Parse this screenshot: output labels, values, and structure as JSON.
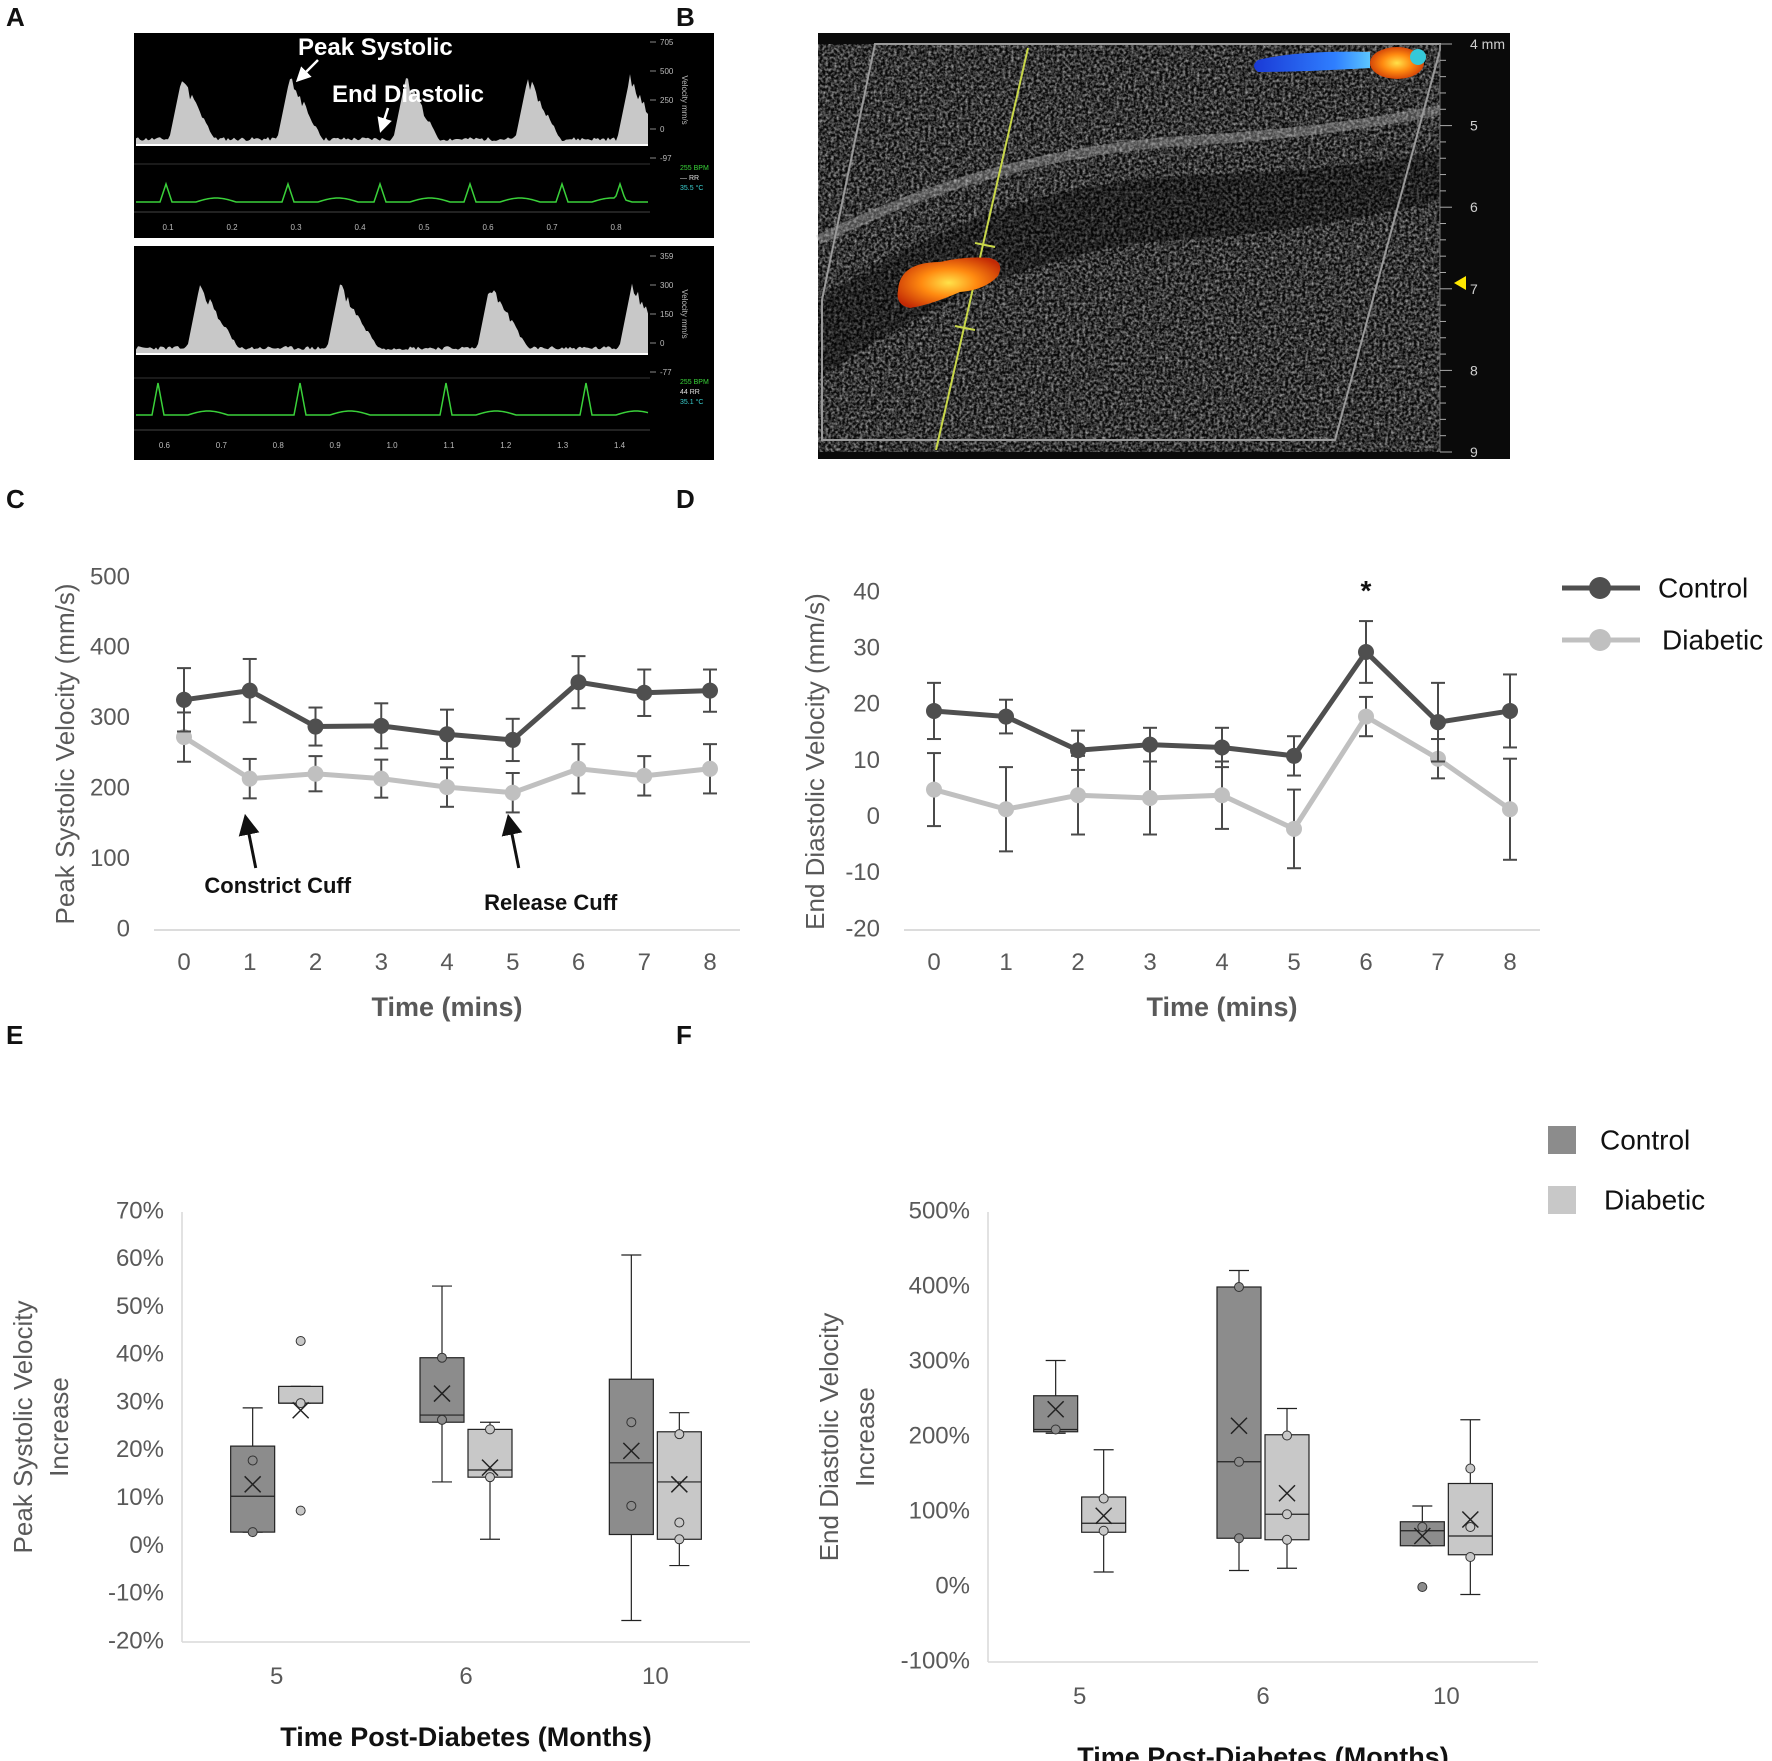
{
  "panel_labels": [
    "A",
    "B",
    "C",
    "D",
    "E",
    "F"
  ],
  "colors": {
    "control_line": "#4f4f4f",
    "diabetic_line": "#c0c0c0",
    "control_box": "#8c8c8c",
    "diabetic_box": "#c8c8c8",
    "axis_text": "#595959",
    "waveform_green": "#3ad13a",
    "ultrasound_bg": "#0a0a0a"
  },
  "panel_a": {
    "annotation_peak": "Peak Systolic",
    "annotation_end": "End Diastolic",
    "top_time_ticks": [
      "0.1",
      "0.2",
      "0.3",
      "0.4",
      "0.5",
      "0.6",
      "0.7",
      "0.8"
    ],
    "bottom_time_ticks": [
      "0.6",
      "0.7",
      "0.8",
      "0.9",
      "1.0",
      "1.1",
      "1.2",
      "1.3",
      "1.4"
    ],
    "top_scale_ticks": [
      "705",
      "500",
      "250",
      "0",
      "-97"
    ],
    "bottom_scale_ticks": [
      "359",
      "300",
      "150",
      "0",
      "-77"
    ],
    "top_side_readout": [
      "255 BPM",
      "— RR",
      "35.5 °C"
    ],
    "bottom_side_readout": [
      "255 BPM",
      "44 RR",
      "35.1 °C"
    ],
    "scale_label": "Velocity mm/s"
  },
  "panel_b": {
    "depth_ticks": [
      "4 mm",
      "5",
      "6",
      "7",
      "8",
      "9"
    ]
  },
  "chart_data": [
    {
      "panel": "C",
      "type": "line",
      "xlabel": "Time (mins)",
      "ylabel": "Peak Systolic Velocity (mm/s)",
      "x": [
        0,
        1,
        2,
        3,
        4,
        5,
        6,
        7,
        8
      ],
      "ylim": [
        0,
        500
      ],
      "yticks": [
        0,
        100,
        200,
        300,
        400,
        500
      ],
      "series": [
        {
          "name": "Control",
          "values": [
            327,
            340,
            289,
            290,
            278,
            270,
            352,
            337,
            340
          ],
          "error": [
            45,
            45,
            27,
            32,
            35,
            30,
            37,
            33,
            30
          ]
        },
        {
          "name": "Diabetic",
          "values": [
            274,
            215,
            222,
            215,
            203,
            195,
            229,
            219,
            229
          ],
          "error": [
            35,
            28,
            25,
            27,
            28,
            28,
            35,
            28,
            35
          ]
        }
      ],
      "annotations": [
        {
          "text": "Constrict Cuff",
          "x": 1
        },
        {
          "text": "Release Cuff",
          "x": 5
        }
      ]
    },
    {
      "panel": "D",
      "type": "line",
      "xlabel": "Time (mins)",
      "ylabel": "End Diastolic Velocity (mm/s)",
      "x": [
        0,
        1,
        2,
        3,
        4,
        5,
        6,
        7,
        8
      ],
      "ylim": [
        -20,
        40
      ],
      "yticks": [
        -20,
        -10,
        0,
        10,
        20,
        30,
        40
      ],
      "legend_position": "top-right",
      "series": [
        {
          "name": "Control",
          "values": [
            19,
            18,
            12,
            13,
            12.5,
            11,
            29.5,
            17,
            19
          ],
          "error": [
            5,
            3,
            3.5,
            3,
            3.5,
            3.5,
            5.5,
            7,
            6.5
          ]
        },
        {
          "name": "Diabetic",
          "values": [
            5,
            1.5,
            4,
            3.5,
            4,
            -2,
            18,
            10.5,
            1.5
          ],
          "error": [
            6.5,
            7.5,
            7,
            6.5,
            6,
            7,
            3.5,
            3.5,
            9
          ]
        }
      ],
      "significance_marker": {
        "text": "*",
        "x": 6
      }
    },
    {
      "panel": "E",
      "type": "box",
      "xlabel": "Time Post-Diabetes (Months)",
      "ylabel_lines": [
        "Peak Systolic Velocity",
        "Increase"
      ],
      "categories": [
        "5",
        "6",
        "10"
      ],
      "ylim": [
        -20,
        70
      ],
      "yticks": [
        "-20%",
        "-10%",
        "0%",
        "10%",
        "20%",
        "30%",
        "40%",
        "50%",
        "60%",
        "70%"
      ],
      "yticks_values": [
        -20,
        -10,
        0,
        10,
        20,
        30,
        40,
        50,
        60,
        70
      ],
      "series": [
        {
          "name": "Control",
          "boxes": [
            {
              "whisker_low": 3,
              "q1": 3,
              "median": 10.5,
              "q3": 21,
              "whisker_high": 29,
              "mean": 13,
              "points": [
                3,
                18
              ]
            },
            {
              "whisker_low": 13.5,
              "q1": 26,
              "median": 27.5,
              "q3": 39.5,
              "whisker_high": 54.5,
              "mean": 32,
              "points": [
                26.5,
                39.5
              ]
            },
            {
              "whisker_low": -15.5,
              "q1": 2.5,
              "median": 17.5,
              "q3": 35,
              "whisker_high": 61,
              "mean": 20,
              "points": [
                8.5,
                26
              ]
            }
          ]
        },
        {
          "name": "Diabetic",
          "boxes": [
            {
              "whisker_low": 30,
              "q1": 30,
              "median": 30,
              "q3": 33.5,
              "whisker_high": 33.5,
              "mean": 28.5,
              "points": [
                7.5,
                30,
                43
              ]
            },
            {
              "whisker_low": 1.5,
              "q1": 14.5,
              "median": 16,
              "q3": 24.5,
              "whisker_high": 26,
              "mean": 16.5,
              "points": [
                14.5,
                24.5
              ]
            },
            {
              "whisker_low": -4,
              "q1": 1.5,
              "median": 13.5,
              "q3": 24,
              "whisker_high": 28,
              "mean": 13,
              "points": [
                1.5,
                5,
                23.5
              ]
            }
          ]
        }
      ]
    },
    {
      "panel": "F",
      "type": "box",
      "xlabel": "Time Post-Diabetes (Months)",
      "ylabel_lines": [
        "End Diastolic Velocity",
        "Increase"
      ],
      "categories": [
        "5",
        "6",
        "10"
      ],
      "ylim": [
        -100,
        500
      ],
      "yticks": [
        "-100%",
        "0%",
        "100%",
        "200%",
        "300%",
        "400%",
        "500%"
      ],
      "yticks_values": [
        -100,
        0,
        100,
        200,
        300,
        400,
        500
      ],
      "legend_position": "top-right",
      "series": [
        {
          "name": "Control",
          "boxes": [
            {
              "whisker_low": 205,
              "q1": 207,
              "median": 210,
              "q3": 255,
              "whisker_high": 302,
              "mean": 237,
              "points": [
                210
              ]
            },
            {
              "whisker_low": 22,
              "q1": 65,
              "median": 167,
              "q3": 400,
              "whisker_high": 422,
              "mean": 215,
              "points": [
                65,
                167,
                400
              ]
            },
            {
              "whisker_low": 55,
              "q1": 55,
              "median": 75,
              "q3": 87,
              "whisker_high": 108,
              "mean": 68,
              "points": [
                0,
                80
              ]
            }
          ]
        },
        {
          "name": "Diabetic",
          "boxes": [
            {
              "whisker_low": 20,
              "q1": 73,
              "median": 85,
              "q3": 120,
              "whisker_high": 183,
              "mean": 95,
              "points": [
                75,
                118
              ]
            },
            {
              "whisker_low": 25,
              "q1": 63,
              "median": 97,
              "q3": 203,
              "whisker_high": 238,
              "mean": 125,
              "points": [
                63,
                97,
                202
              ]
            },
            {
              "whisker_low": -10,
              "q1": 43,
              "median": 68,
              "q3": 138,
              "whisker_high": 223,
              "mean": 90,
              "points": [
                40,
                80,
                158
              ]
            }
          ]
        }
      ]
    }
  ],
  "legend": {
    "control": "Control",
    "diabetic": "Diabetic"
  }
}
